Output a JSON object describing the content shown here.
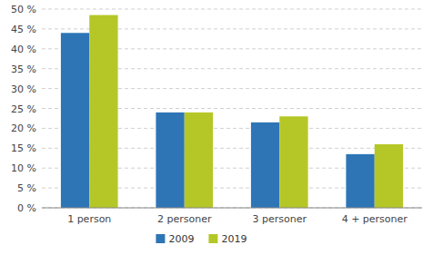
{
  "chart_data": {
    "type": "bar",
    "categories": [
      "1 person",
      "2 personer",
      "3 personer",
      "4 + personer"
    ],
    "series": [
      {
        "name": "2009",
        "color": "#2e75b6",
        "values": [
          44,
          24,
          21.5,
          13.5
        ]
      },
      {
        "name": "2019",
        "color": "#b5c727",
        "values": [
          48.5,
          24,
          23,
          16
        ]
      }
    ],
    "ylim": [
      0,
      50
    ],
    "yticks": [
      {
        "value": 0,
        "label": "0 %"
      },
      {
        "value": 5,
        "label": "5 %"
      },
      {
        "value": 10,
        "label": "10 %"
      },
      {
        "value": 15,
        "label": "15 %"
      },
      {
        "value": 20,
        "label": "20 %"
      },
      {
        "value": 25,
        "label": "25 %"
      },
      {
        "value": 30,
        "label": "30 %"
      },
      {
        "value": 35,
        "label": "35 %"
      },
      {
        "value": 40,
        "label": "40 %"
      },
      {
        "value": 45,
        "label": "45 %"
      },
      {
        "value": 50,
        "label": "50 %"
      }
    ],
    "grid": true,
    "legend": "bottom"
  }
}
